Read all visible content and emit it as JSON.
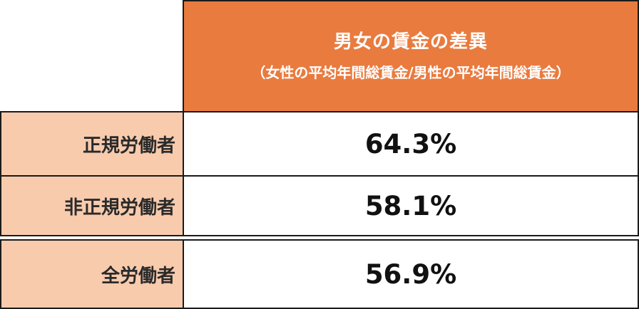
{
  "header": {
    "title": "男女の賃金の差異",
    "subtitle": "（女性の平均年間総賃金/男性の平均年間総賃金）"
  },
  "rows": [
    {
      "label": "正規労働者",
      "value": "64.3%"
    },
    {
      "label": "非正規労働者",
      "value": "58.1%"
    },
    {
      "label": "全労働者",
      "value": "56.9%"
    }
  ],
  "colors": {
    "header_bg": "#e97b3f",
    "label_bg": "#f8cbad",
    "border": "#1a1a1a"
  }
}
